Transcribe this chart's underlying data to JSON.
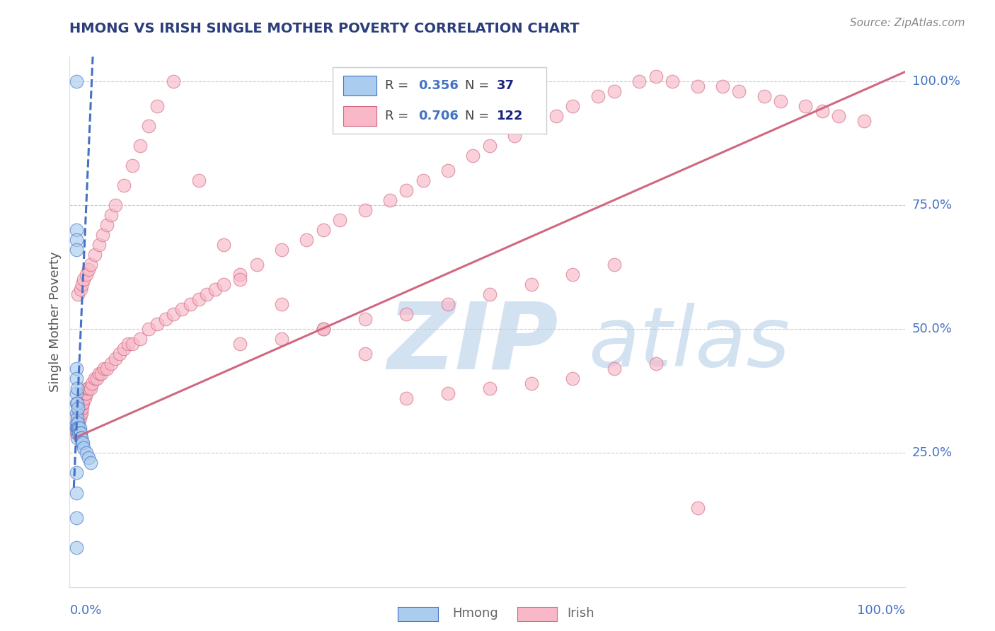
{
  "title": "HMONG VS IRISH SINGLE MOTHER POVERTY CORRELATION CHART",
  "source": "Source: ZipAtlas.com",
  "ylabel": "Single Mother Poverty",
  "yticklabels": [
    "25.0%",
    "50.0%",
    "75.0%",
    "100.0%"
  ],
  "yticks": [
    0.25,
    0.5,
    0.75,
    1.0
  ],
  "xlim": [
    0.0,
    1.0
  ],
  "ylim": [
    0.0,
    1.05
  ],
  "legend_blue_r": "0.356",
  "legend_blue_n": "37",
  "legend_pink_r": "0.706",
  "legend_pink_n": "122",
  "hmong_face": "#aaccee",
  "hmong_edge": "#4472c4",
  "irish_face": "#f8b8c8",
  "irish_edge": "#d06880",
  "hmong_line": "#4472c4",
  "irish_line": "#d06880",
  "watermark_color": "#ccddef",
  "grid_color": "#cccccc",
  "title_color": "#2c3e7a",
  "axis_label_color": "#4472c4",
  "r_color": "#4472c4",
  "n_color": "#1a237e",
  "hmong_x": [
    0.003,
    0.003,
    0.003,
    0.003,
    0.003,
    0.003,
    0.003,
    0.003,
    0.003,
    0.003,
    0.003,
    0.004,
    0.004,
    0.004,
    0.004,
    0.004,
    0.004,
    0.005,
    0.005,
    0.005,
    0.006,
    0.006,
    0.007,
    0.007,
    0.008,
    0.008,
    0.009,
    0.01,
    0.011,
    0.012,
    0.015,
    0.018,
    0.02,
    0.003,
    0.003,
    0.003,
    0.003
  ],
  "hmong_y": [
    1.0,
    0.7,
    0.68,
    0.66,
    0.42,
    0.4,
    0.37,
    0.35,
    0.33,
    0.31,
    0.3,
    0.38,
    0.35,
    0.32,
    0.3,
    0.29,
    0.28,
    0.34,
    0.31,
    0.3,
    0.3,
    0.29,
    0.3,
    0.29,
    0.29,
    0.28,
    0.28,
    0.27,
    0.27,
    0.26,
    0.25,
    0.24,
    0.23,
    0.21,
    0.17,
    0.12,
    0.06
  ],
  "irish_x": [
    0.003,
    0.004,
    0.004,
    0.005,
    0.005,
    0.005,
    0.006,
    0.006,
    0.007,
    0.007,
    0.008,
    0.008,
    0.009,
    0.009,
    0.01,
    0.01,
    0.011,
    0.012,
    0.013,
    0.014,
    0.015,
    0.016,
    0.018,
    0.02,
    0.022,
    0.025,
    0.028,
    0.03,
    0.033,
    0.036,
    0.04,
    0.045,
    0.05,
    0.055,
    0.06,
    0.065,
    0.07,
    0.08,
    0.09,
    0.1,
    0.11,
    0.12,
    0.13,
    0.14,
    0.15,
    0.16,
    0.17,
    0.18,
    0.2,
    0.22,
    0.25,
    0.28,
    0.3,
    0.32,
    0.35,
    0.38,
    0.4,
    0.42,
    0.45,
    0.48,
    0.5,
    0.53,
    0.55,
    0.58,
    0.6,
    0.63,
    0.65,
    0.68,
    0.7,
    0.72,
    0.75,
    0.78,
    0.8,
    0.83,
    0.85,
    0.88,
    0.9,
    0.92,
    0.95,
    0.005,
    0.008,
    0.01,
    0.012,
    0.015,
    0.018,
    0.02,
    0.025,
    0.03,
    0.035,
    0.04,
    0.045,
    0.05,
    0.06,
    0.07,
    0.08,
    0.09,
    0.1,
    0.12,
    0.15,
    0.18,
    0.2,
    0.25,
    0.3,
    0.35,
    0.2,
    0.25,
    0.3,
    0.35,
    0.4,
    0.45,
    0.5,
    0.55,
    0.6,
    0.65,
    0.4,
    0.45,
    0.5,
    0.55,
    0.6,
    0.65,
    0.7,
    0.75
  ],
  "irish_y": [
    0.29,
    0.3,
    0.32,
    0.3,
    0.31,
    0.33,
    0.31,
    0.32,
    0.32,
    0.33,
    0.33,
    0.34,
    0.33,
    0.35,
    0.34,
    0.35,
    0.35,
    0.36,
    0.36,
    0.37,
    0.37,
    0.38,
    0.38,
    0.38,
    0.39,
    0.4,
    0.4,
    0.41,
    0.41,
    0.42,
    0.42,
    0.43,
    0.44,
    0.45,
    0.46,
    0.47,
    0.47,
    0.48,
    0.5,
    0.51,
    0.52,
    0.53,
    0.54,
    0.55,
    0.56,
    0.57,
    0.58,
    0.59,
    0.61,
    0.63,
    0.66,
    0.68,
    0.7,
    0.72,
    0.74,
    0.76,
    0.78,
    0.8,
    0.82,
    0.85,
    0.87,
    0.89,
    0.91,
    0.93,
    0.95,
    0.97,
    0.98,
    1.0,
    1.01,
    1.0,
    0.99,
    0.99,
    0.98,
    0.97,
    0.96,
    0.95,
    0.94,
    0.93,
    0.92,
    0.57,
    0.58,
    0.59,
    0.6,
    0.61,
    0.62,
    0.63,
    0.65,
    0.67,
    0.69,
    0.71,
    0.73,
    0.75,
    0.79,
    0.83,
    0.87,
    0.91,
    0.95,
    1.0,
    0.8,
    0.67,
    0.6,
    0.55,
    0.5,
    0.45,
    0.47,
    0.48,
    0.5,
    0.52,
    0.53,
    0.55,
    0.57,
    0.59,
    0.61,
    0.63,
    0.36,
    0.37,
    0.38,
    0.39,
    0.4,
    0.42,
    0.43,
    0.14
  ]
}
